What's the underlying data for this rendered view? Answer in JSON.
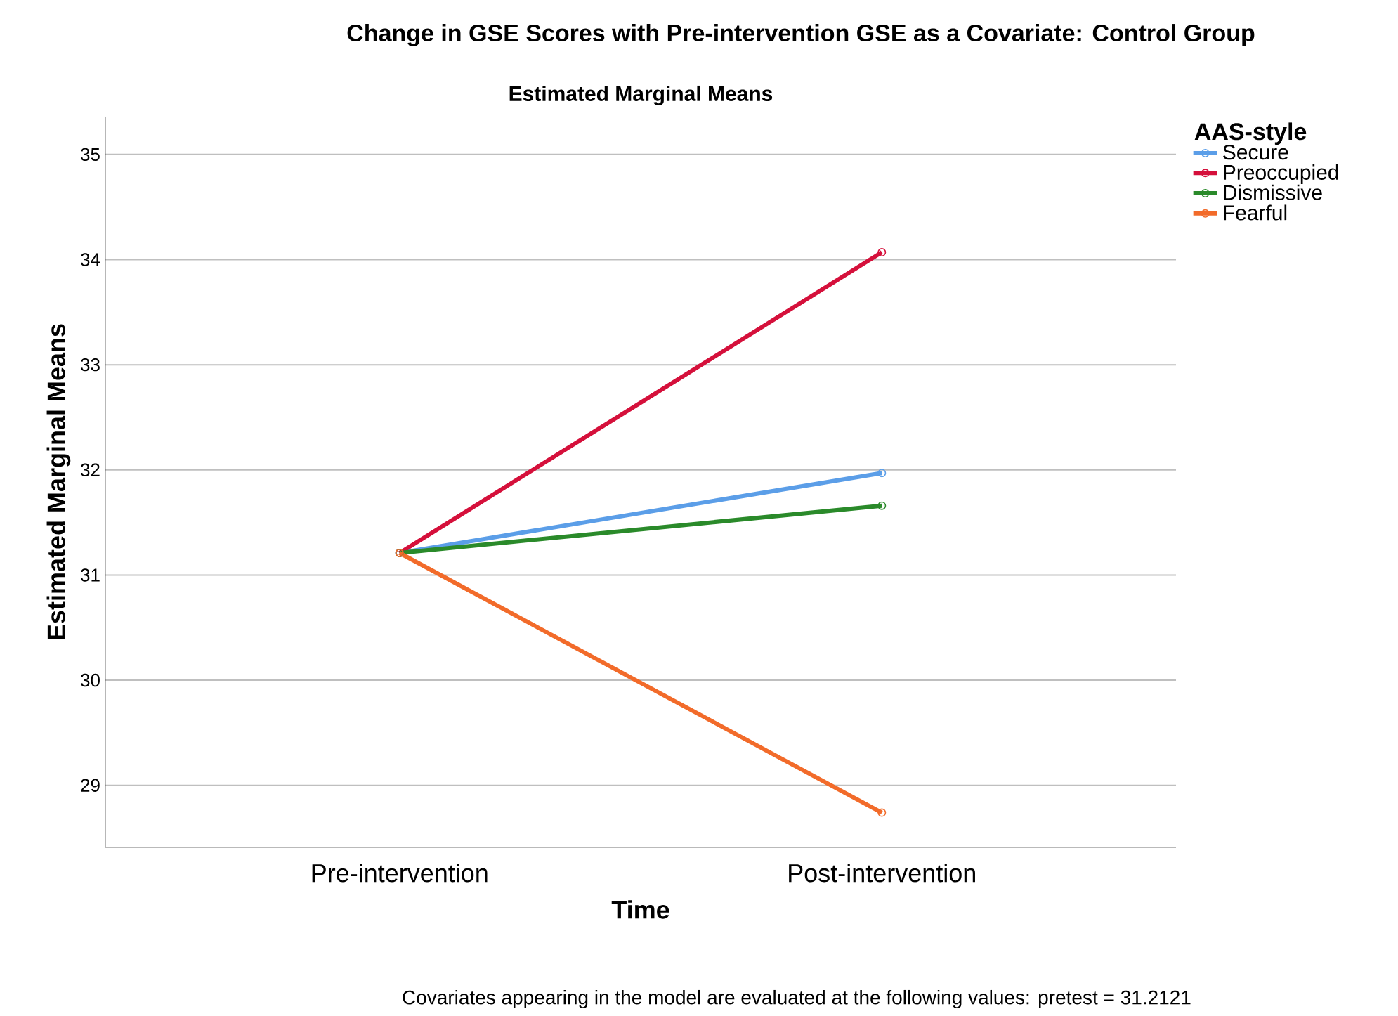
{
  "chart_data": {
    "type": "line",
    "title": "Change in GSE Scores with Pre-intervention GSE as a Covariate: Control Group",
    "subtitle": "Estimated Marginal Means",
    "xlabel": "Time",
    "ylabel": "Estimated Marginal Means",
    "legend_title": "AAS-style",
    "annotations": [
      "Covariates appearing in the model are evaluated at the following values: pretest = 31.2121"
    ],
    "categories": [
      "Pre-intervention",
      "Post-intervention"
    ],
    "series": [
      {
        "name": "Secure",
        "color": "#5b9ee8",
        "values": [
          31.21,
          31.97
        ]
      },
      {
        "name": "Preoccupied",
        "color": "#d5103b",
        "values": [
          31.21,
          34.07
        ]
      },
      {
        "name": "Dismissive",
        "color": "#2a8a2a",
        "values": [
          31.21,
          31.66
        ]
      },
      {
        "name": "Fearful",
        "color": "#f26b2a",
        "values": [
          31.21,
          28.74
        ]
      }
    ],
    "ylim": [
      28.41,
      35.36
    ],
    "yticks": [
      29,
      30,
      31,
      32,
      33,
      34,
      35
    ],
    "grid": "y",
    "legend": "top right",
    "marker": "circle"
  }
}
